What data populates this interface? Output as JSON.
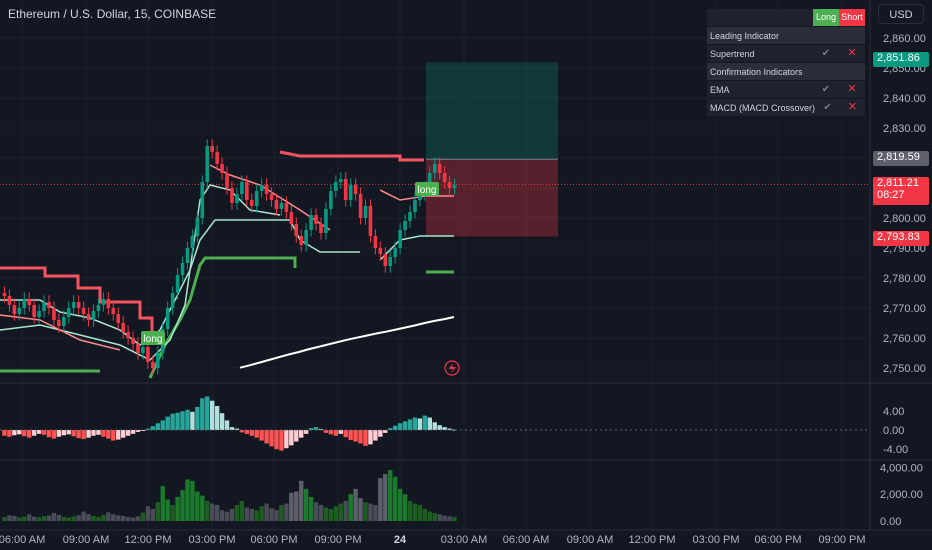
{
  "header": {
    "title": "Ethereum / U.S. Dollar, 15, COINBASE",
    "currency": "USD"
  },
  "indicator_table": {
    "col_long": "Long",
    "col_short": "Short",
    "rows": [
      {
        "label": "Leading Indicator",
        "section": true
      },
      {
        "label": "Supertrend",
        "long": "check",
        "short": "cross"
      },
      {
        "label": "Confirmation Indicators",
        "section": true
      },
      {
        "label": "EMA",
        "long": "check",
        "short": "cross"
      },
      {
        "label": "MACD (MACD Crossover)",
        "long": "check",
        "short": "cross"
      }
    ]
  },
  "price_tags": {
    "take_profit": "2,851.86",
    "entry": "2,819.59",
    "last": "2,811.21",
    "countdown": "08:27",
    "stop_loss": "2,793.83"
  },
  "signal_labels": [
    "long",
    "long"
  ],
  "chart_data": [
    {
      "type": "candlestick",
      "title": "Ethereum / U.S. Dollar, 15, COINBASE",
      "ylim": [
        2745,
        2866
      ],
      "y_ticks": [
        "2,860.00",
        "2,850.00",
        "2,840.00",
        "2,830.00",
        "2,820.00",
        "2,810.00",
        "2,800.00",
        "2,790.00",
        "2,780.00",
        "2,770.00",
        "2,760.00",
        "2,750.00"
      ],
      "x_ticks": [
        "06:00 AM",
        "09:00 AM",
        "12:00 PM",
        "03:00 PM",
        "06:00 PM",
        "09:00 PM",
        "24",
        "03:00 AM",
        "06:00 AM",
        "09:00 AM",
        "12:00 PM",
        "03:00 PM",
        "06:00 PM",
        "09:00 PM"
      ],
      "close": [
        2774,
        2771,
        2768,
        2770,
        2773,
        2771,
        2767,
        2769,
        2772,
        2770,
        2766,
        2764,
        2767,
        2770,
        2772,
        2770,
        2768,
        2766,
        2769,
        2771,
        2773,
        2770,
        2768,
        2765,
        2762,
        2760,
        2758,
        2755,
        2757,
        2752,
        2750,
        2755,
        2763,
        2770,
        2775,
        2781,
        2785,
        2790,
        2794,
        2800,
        2812,
        2824,
        2822,
        2818,
        2815,
        2810,
        2805,
        2808,
        2812,
        2806,
        2804,
        2809,
        2811,
        2808,
        2806,
        2803,
        2805,
        2802,
        2798,
        2794,
        2791,
        2796,
        2801,
        2798,
        2795,
        2803,
        2809,
        2812,
        2813,
        2806,
        2811,
        2808,
        2800,
        2804,
        2794,
        2790,
        2788,
        2784,
        2787,
        2790,
        2796,
        2799,
        2802,
        2806,
        2808,
        2810,
        2815,
        2818,
        2815,
        2812,
        2810,
        2811
      ],
      "series": [
        {
          "name": "",
          "color": "#ffffff",
          "values": [
            2750.1,
            2750.9,
            2751.8,
            2752.7,
            2753.6,
            2754.5,
            2755.3,
            2756.2,
            2757.0,
            2757.8,
            2758.6,
            2759.4,
            2760.1,
            2760.8,
            2761.5,
            2762.1,
            2762.8,
            2763.5,
            2764.2,
            2765.0,
            2765.7,
            2766.3,
            2767.0
          ]
        }
      ],
      "levels": {
        "entry": 2819.59,
        "take_profit": 2851.86,
        "stop_loss": 2793.83
      }
    },
    {
      "type": "bar",
      "name": "MACD histogram",
      "y_ticks": [
        "4.00",
        "0.00",
        "-4.00"
      ],
      "values": [
        -1.2,
        -1.4,
        -1.1,
        -0.9,
        -1.3,
        -1.6,
        -1.2,
        -0.8,
        -1.0,
        -1.5,
        -1.8,
        -1.4,
        -1.1,
        -0.9,
        -1.3,
        -1.7,
        -1.9,
        -1.6,
        -1.2,
        -1.0,
        -1.4,
        -1.8,
        -2.2,
        -2.0,
        -1.6,
        -1.2,
        -0.8,
        -0.4,
        -0.2,
        0.3,
        0.8,
        1.4,
        2.0,
        2.8,
        3.4,
        3.6,
        3.9,
        4.2,
        3.8,
        4.8,
        6.6,
        7.0,
        6.1,
        5.0,
        3.5,
        2.0,
        0.6,
        0.3,
        -0.5,
        -0.8,
        -1.2,
        -1.6,
        -2.2,
        -2.8,
        -3.4,
        -4.0,
        -4.3,
        -3.8,
        -3.2,
        -2.4,
        -1.6,
        -0.8,
        0.4,
        0.6,
        0.2,
        -0.6,
        -0.9,
        -1.2,
        -0.8,
        -1.5,
        -2.1,
        -2.4,
        -2.8,
        -3.3,
        -3.0,
        -2.2,
        -1.4,
        -0.6,
        0.4,
        0.9,
        1.4,
        1.8,
        2.2,
        2.6,
        2.4,
        3.0,
        2.6,
        1.6,
        1.0,
        0.6,
        0.3,
        0.1
      ]
    },
    {
      "type": "bar",
      "name": "Volume",
      "y_ticks": [
        "4,000.00",
        "2,000.00",
        "0.00"
      ],
      "values": [
        300,
        420,
        380,
        260,
        340,
        500,
        320,
        280,
        360,
        410,
        600,
        450,
        300,
        260,
        350,
        420,
        700,
        520,
        380,
        300,
        450,
        640,
        500,
        420,
        380,
        300,
        260,
        340,
        620,
        1100,
        900,
        1400,
        2600,
        1600,
        1200,
        1800,
        2300,
        3100,
        3000,
        2200,
        1900,
        1500,
        1300,
        1200,
        800,
        700,
        900,
        1200,
        1500,
        1000,
        900,
        800,
        1100,
        1300,
        950,
        820,
        1200,
        1300,
        2100,
        2200,
        3000,
        2400,
        1800,
        1400,
        1200,
        1000,
        900,
        1100,
        1300,
        1500,
        2000,
        2400,
        1700,
        1400,
        1300,
        1200,
        3200,
        3500,
        3800,
        3300,
        2400,
        2000,
        1500,
        1300,
        1200,
        900,
        700,
        600,
        500,
        400,
        350,
        300
      ]
    }
  ]
}
